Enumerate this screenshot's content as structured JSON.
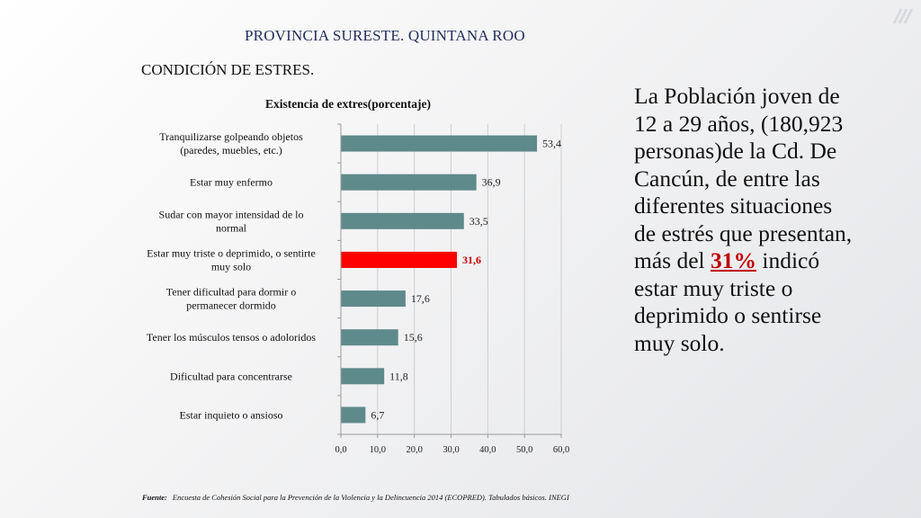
{
  "slide": {
    "title": "PROVINCIA SURESTE. QUINTANA ROO",
    "subtitle": "CONDICIÓN DE ESTRES."
  },
  "chart_data": {
    "type": "bar",
    "orientation": "horizontal",
    "title": "Existencia de extres(porcentaje)",
    "xlim": [
      0,
      60
    ],
    "xticks": [
      0,
      10,
      20,
      30,
      40,
      50,
      60
    ],
    "xtick_labels": [
      "0,0",
      "10,0",
      "20,0",
      "30,0",
      "40,0",
      "50,0",
      "60,0"
    ],
    "grid": true,
    "categories": [
      [
        "Tranquilizarse golpeando objetos",
        "(paredes, muebles, etc.)"
      ],
      [
        "Estar muy enfermo"
      ],
      [
        "Sudar con mayor intensidad de lo",
        "normal"
      ],
      [
        "Estar muy triste o deprimido, o sentirte",
        "muy solo"
      ],
      [
        "Tener dificultad para dormir o",
        "permanecer dormido"
      ],
      [
        "Tener los músculos tensos o adoloridos"
      ],
      [
        "Dificultad para concentrarse"
      ],
      [
        "Estar inquieto o ansioso"
      ]
    ],
    "values": [
      53.4,
      36.9,
      33.5,
      31.6,
      17.6,
      15.6,
      11.8,
      6.7
    ],
    "value_labels": [
      "53,4",
      "36,9",
      "33,5",
      "31,6",
      "17,6",
      "15,6",
      "11,8",
      "6,7"
    ],
    "highlight_index": 3,
    "colors": {
      "bar": "#5f8a8b",
      "highlight": "#ff0000",
      "highlight_label": "#c00000"
    }
  },
  "side_text": {
    "before": "La Población joven de 12 a 29 años, (180,923 personas)de la Cd. De Cancún, de entre las diferentes situaciones de estrés que presentan, más del ",
    "highlight": "31%",
    "after": " indicó estar muy triste o deprimido o sentirse muy solo."
  },
  "footnote": {
    "label": "Fuente:",
    "text": "Encuesta de Cohesión Social para la Prevención de la Violencia y la Delincuencia 2014 (ECOPRED). Tabulados básicos. INEGI"
  }
}
